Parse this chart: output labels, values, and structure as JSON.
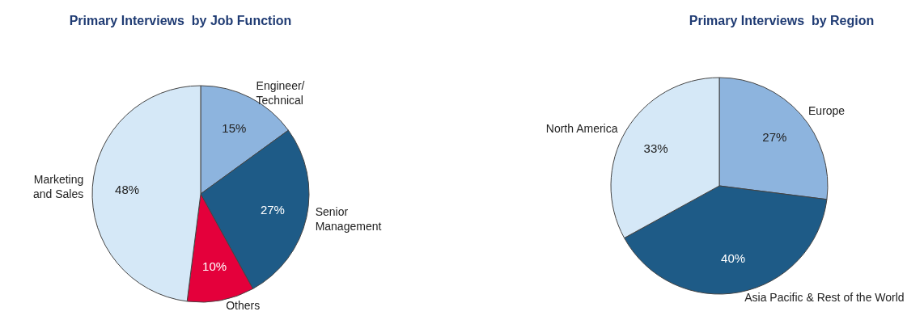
{
  "chart_data": [
    {
      "type": "pie",
      "title": "Primary Interviews  by Job Function",
      "categories": [
        "Engineer/\nTechnical",
        "Senior\nManagement",
        "Others",
        "Marketing\nand Sales"
      ],
      "values": [
        15,
        27,
        10,
        48
      ],
      "colors": [
        "#8db4de",
        "#1e5b87",
        "#e4003b",
        "#d5e8f7"
      ],
      "value_labels": [
        "15%",
        "27%",
        "10%",
        "48%"
      ]
    },
    {
      "type": "pie",
      "title": "Primary Interviews  by Region",
      "categories": [
        "Europe",
        "Asia Pacific & Rest of the World",
        "North America"
      ],
      "values": [
        27,
        40,
        33
      ],
      "colors": [
        "#8db4de",
        "#1e5b87",
        "#d5e8f7"
      ],
      "value_labels": [
        "27%",
        "40%",
        "33%"
      ]
    }
  ]
}
